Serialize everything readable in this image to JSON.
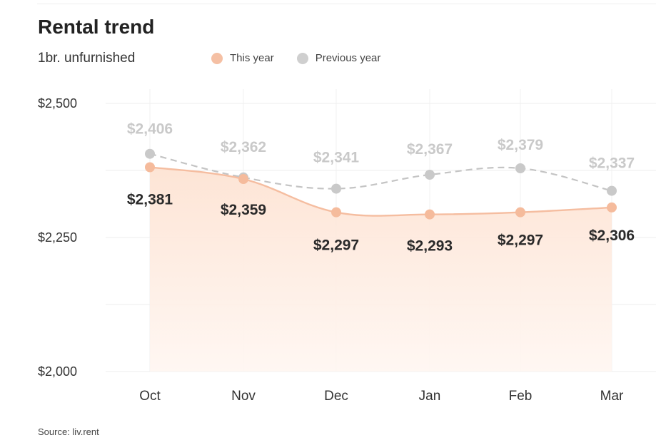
{
  "header": {
    "title": "Rental trend",
    "subtitle": "1br. unfurnished"
  },
  "legend": [
    {
      "label": "This year",
      "color": "#f5c0a4"
    },
    {
      "label": "Previous year",
      "color": "#cfcfcf"
    }
  ],
  "source": "Source: liv.rent",
  "chart_data": {
    "type": "line",
    "title": "Rental trend",
    "subtitle": "1br. unfurnished",
    "categories": [
      "Oct",
      "Nov",
      "Dec",
      "Jan",
      "Feb",
      "Mar"
    ],
    "ylim": [
      2000,
      2500
    ],
    "yticks": [
      2000,
      2250,
      2500
    ],
    "ytick_labels": [
      "$2,000",
      "$2,250",
      "$2,500"
    ],
    "grid": true,
    "legend_position": "top",
    "series": [
      {
        "name": "This year",
        "values": [
          2381,
          2359,
          2297,
          2293,
          2297,
          2306
        ],
        "labels": [
          "$2,381",
          "$2,359",
          "$2,297",
          "$2,293",
          "$2,297",
          "$2,306"
        ],
        "color": "#f5bda0",
        "style": "solid",
        "area": true
      },
      {
        "name": "Previous year",
        "values": [
          2406,
          2362,
          2341,
          2367,
          2379,
          2337
        ],
        "labels": [
          "$2,406",
          "$2,362",
          "$2,341",
          "$2,367",
          "$2,379",
          "$2,337"
        ],
        "color": "#c4c4c4",
        "style": "dashed",
        "area": false
      }
    ]
  }
}
